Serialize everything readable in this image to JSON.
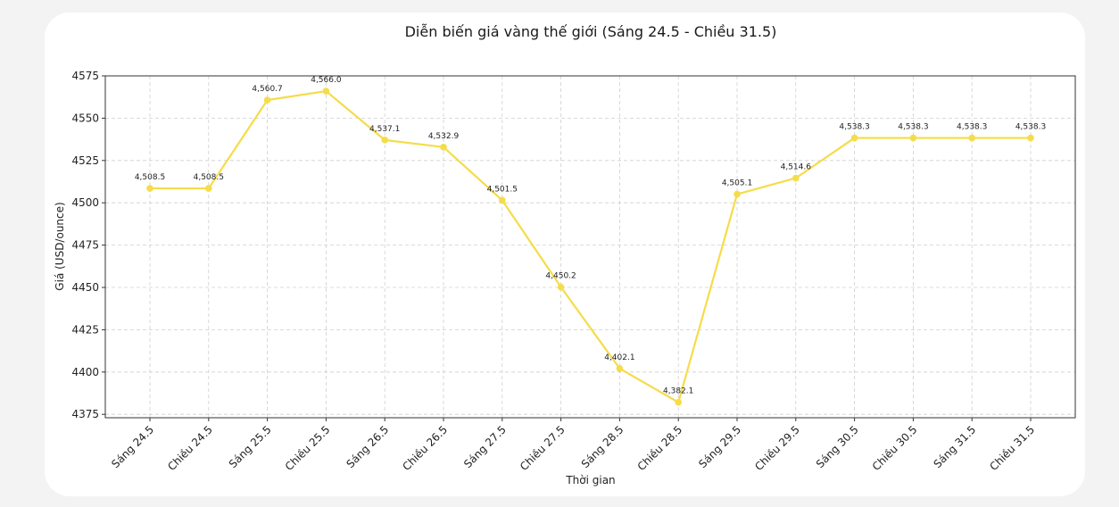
{
  "chart_data": {
    "type": "line",
    "title": "Diễn biến giá vàng thế giới (Sáng 24.5 - Chiều 31.5)",
    "xlabel": "Thời gian",
    "ylabel": "Giá (USD/ounce)",
    "categories": [
      "Sáng 24.5",
      "Chiều 24.5",
      "Sáng 25.5",
      "Chiều 25.5",
      "Sáng 26.5",
      "Chiều 26.5",
      "Sáng 27.5",
      "Chiều 27.5",
      "Sáng 28.5",
      "Chiều 28.5",
      "Sáng 29.5",
      "Chiều 29.5",
      "Sáng 30.5",
      "Chiều 30.5",
      "Sáng 31.5",
      "Chiều 31.5"
    ],
    "values": [
      4508.5,
      4508.5,
      4560.7,
      4566.0,
      4537.1,
      4532.9,
      4501.5,
      4450.2,
      4402.1,
      4382.1,
      4505.1,
      4514.6,
      4538.3,
      4538.3,
      4538.3,
      4538.3
    ],
    "data_labels": [
      "4,508.5",
      "4,508.5",
      "4,560.7",
      "4,566.0",
      "4,537.1",
      "4,532.9",
      "4,501.5",
      "4,450.2",
      "4,402.1",
      "4,382.1",
      "4,505.1",
      "4,514.6",
      "4,538.3",
      "4,538.3",
      "4,538.3",
      "4,538.3"
    ],
    "yticks": [
      4375,
      4400,
      4425,
      4450,
      4475,
      4500,
      4525,
      4550,
      4575
    ],
    "ylim": [
      4373,
      4575
    ],
    "grid": true,
    "line_color": "#f5dc4a"
  }
}
